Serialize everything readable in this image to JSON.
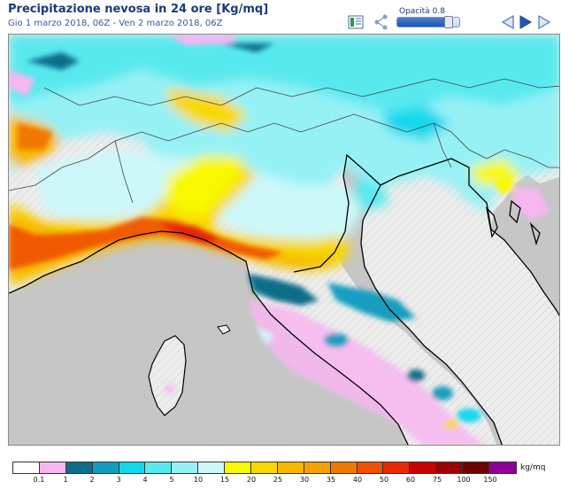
{
  "header": {
    "title": "Precipitazione nevosa in 24 ore [Kg/mq]",
    "subtitle": "Gio 1 marzo 2018, 06Z - Ven 2 marzo 2018, 06Z"
  },
  "toolbar": {
    "legend_icon": "map-legend-icon",
    "share_icon": "share-icon",
    "opacity_label": "Opacità 0.8",
    "opacity_value": 0.8,
    "prev_icon": "triangle-left-icon",
    "play_icon": "triangle-right-icon",
    "next_icon": "triangle-right-open-icon"
  },
  "map": {
    "colors": {
      "sea": "#c6c6c6",
      "land": "#ececec",
      "coast": "#000000",
      "borders": "#555555"
    }
  },
  "legend": {
    "unit": "kg/mq",
    "labels": [
      "0.1",
      "1",
      "2",
      "3",
      "4",
      "5",
      "10",
      "15",
      "20",
      "25",
      "30",
      "35",
      "40",
      "50",
      "60",
      "75",
      "100",
      "150"
    ],
    "colors": [
      "#ffffff",
      "#f7b6f0",
      "#0b6e8a",
      "#129ec0",
      "#12d8ee",
      "#58e9ef",
      "#96f1f5",
      "#ccf8fa",
      "#f8f800",
      "#f8d800",
      "#f8b800",
      "#f8a000",
      "#f07800",
      "#f05000",
      "#e82800",
      "#c80000",
      "#9c0000",
      "#6e0000",
      "#8e0098"
    ]
  }
}
